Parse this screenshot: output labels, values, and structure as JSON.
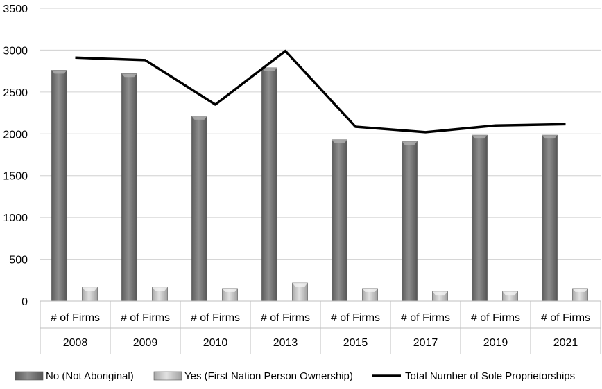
{
  "chart_data": {
    "type": "bar",
    "categories": [
      "2008",
      "2009",
      "2010",
      "2013",
      "2015",
      "2017",
      "2019",
      "2021"
    ],
    "subcategory_label": "# of Firms",
    "series": [
      {
        "name": "No  (Not Aboriginal)",
        "kind": "bar",
        "color": "#7a7a7a",
        "values": [
          2760,
          2720,
          2210,
          2790,
          1930,
          1910,
          1985,
          1985
        ]
      },
      {
        "name": "Yes (First Nation Person Ownership)",
        "kind": "bar",
        "color": "#c4c4c4",
        "values": [
          165,
          165,
          150,
          215,
          150,
          115,
          115,
          150
        ]
      },
      {
        "name": "Total Number of Sole Proprietorships",
        "kind": "line",
        "color": "#000000",
        "values": [
          2910,
          2880,
          2350,
          2990,
          2085,
          2020,
          2100,
          2115
        ]
      }
    ],
    "yticks": [
      "0",
      "500",
      "1000",
      "1500",
      "2000",
      "2500",
      "3000",
      "3500"
    ],
    "ylim": [
      0,
      3500
    ],
    "grid": true,
    "legend_position": "bottom"
  }
}
